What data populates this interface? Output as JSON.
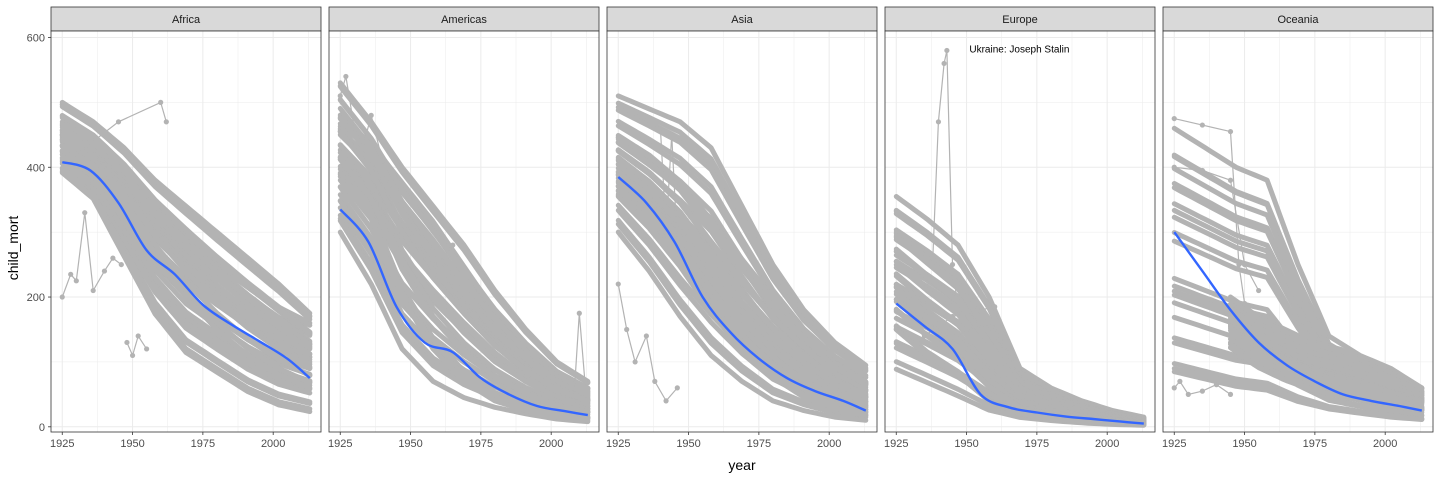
{
  "chart_data": {
    "type": "line",
    "xlabel": "year",
    "ylabel": "child_mort",
    "xlim": [
      1921,
      2017
    ],
    "ylim": [
      -8,
      610
    ],
    "x_ticks": [
      1925,
      1950,
      1975,
      2000
    ],
    "y_ticks": [
      0,
      200,
      400,
      600
    ],
    "grid": true,
    "colors": {
      "points": "#b3b3b3",
      "smooth": "#3366ff",
      "strip": "#d9d9d9",
      "grid": "#ebebeb"
    },
    "panels": [
      {
        "name": "Africa",
        "smooth": {
          "x": [
            1925,
            1935,
            1945,
            1955,
            1965,
            1975,
            1985,
            1995,
            2005,
            2013
          ],
          "y": [
            408,
            395,
            345,
            272,
            235,
            188,
            158,
            132,
            105,
            75
          ]
        },
        "bands": [
          {
            "x0": 1925,
            "x1": 2013,
            "top": [
              460,
              420,
              380,
              340,
              300,
              260,
              225,
              190,
              165
            ],
            "bottom": [
              390,
              350,
              260,
              170,
              110,
              80,
              50,
              30,
              20
            ]
          },
          {
            "x0": 1925,
            "x1": 2013,
            "top": [
              500,
              470,
              430,
              380,
              340,
              300,
              260,
              220,
              175
            ],
            "bottom": [
              420,
              390,
              330,
              260,
              200,
              150,
              110,
              80,
              60
            ]
          }
        ],
        "extra_lines": [
          {
            "x": [
              1925,
              1928,
              1930,
              1933,
              1936,
              1940,
              1943,
              1946
            ],
            "y": [
              200,
              235,
              225,
              330,
              210,
              240,
              260,
              250
            ]
          },
          {
            "x": [
              1930,
              1945,
              1960,
              1962
            ],
            "y": [
              420,
              470,
              500,
              470
            ]
          },
          {
            "x": [
              1948,
              1950,
              1952,
              1955
            ],
            "y": [
              130,
              110,
              140,
              120
            ]
          }
        ],
        "annotations": []
      },
      {
        "name": "Americas",
        "smooth": {
          "x": [
            1925,
            1935,
            1945,
            1955,
            1965,
            1975,
            1985,
            1995,
            2005,
            2013
          ],
          "y": [
            335,
            285,
            185,
            130,
            115,
            75,
            50,
            32,
            24,
            18
          ]
        },
        "bands": [
          {
            "x0": 1925,
            "x1": 2013,
            "top": [
              480,
              440,
              380,
              320,
              250,
              180,
              120,
              80,
              60
            ],
            "bottom": [
              300,
              220,
              120,
              70,
              45,
              30,
              20,
              12,
              8
            ]
          },
          {
            "x0": 1925,
            "x1": 2013,
            "top": [
              530,
              470,
              400,
              340,
              280,
              210,
              150,
              100,
              70
            ],
            "bottom": [
              380,
              320,
              200,
              120,
              70,
              40,
              25,
              15,
              10
            ]
          }
        ],
        "extra_lines": [
          {
            "x": [
              1925,
              1927,
              1930,
              1933,
              1936,
              1940
            ],
            "y": [
              510,
              540,
              460,
              430,
              480,
              410
            ]
          },
          {
            "x": [
              1930,
              1945,
              1960,
              1965
            ],
            "y": [
              400,
              300,
              250,
              280
            ]
          },
          {
            "x": [
              2008,
              2010,
              2012
            ],
            "y": [
              40,
              175,
              70
            ]
          }
        ],
        "annotations": []
      },
      {
        "name": "Asia",
        "smooth": {
          "x": [
            1925,
            1935,
            1945,
            1955,
            1965,
            1975,
            1985,
            1995,
            2005,
            2013
          ],
          "y": [
            385,
            345,
            285,
            200,
            145,
            105,
            75,
            55,
            40,
            25
          ]
        },
        "bands": [
          {
            "x0": 1925,
            "x1": 2013,
            "top": [
              510,
              490,
              470,
              430,
              340,
              250,
              180,
              130,
              95
            ],
            "bottom": [
              300,
              240,
              170,
              110,
              70,
              40,
              25,
              15,
              10
            ]
          },
          {
            "x0": 1925,
            "x1": 2013,
            "top": [
              450,
              420,
              380,
              320,
              260,
              200,
              150,
              100,
              70
            ],
            "bottom": [
              350,
              300,
              240,
              170,
              110,
              70,
              40,
              25,
              15
            ]
          }
        ],
        "extra_lines": [
          {
            "x": [
              1925,
              1928,
              1931,
              1935,
              1938,
              1942,
              1946
            ],
            "y": [
              220,
              150,
              100,
              140,
              70,
              40,
              60
            ]
          },
          {
            "x": [
              1940,
              1942,
              1944,
              1946
            ],
            "y": [
              460,
              300,
              450,
              280
            ]
          }
        ],
        "annotations": []
      },
      {
        "name": "Europe",
        "smooth": {
          "x": [
            1925,
            1935,
            1945,
            1955,
            1965,
            1975,
            1985,
            1995,
            2005,
            2013
          ],
          "y": [
            190,
            155,
            120,
            50,
            30,
            22,
            16,
            12,
            8,
            5
          ]
        },
        "bands": [
          {
            "x0": 1925,
            "x1": 2013,
            "top": [
              355,
              320,
              280,
              200,
              90,
              60,
              40,
              25,
              15
            ],
            "bottom": [
              80,
              60,
              40,
              20,
              12,
              8,
              5,
              3,
              2
            ]
          },
          {
            "x0": 1925,
            "x1": 2013,
            "top": [
              300,
              260,
              220,
              150,
              70,
              45,
              30,
              20,
              12
            ],
            "bottom": [
              150,
              110,
              80,
              40,
              20,
              12,
              8,
              5,
              3
            ]
          }
        ],
        "extra_lines": [
          {
            "x": [
              1938,
              1940,
              1942,
              1943,
              1945,
              1947,
              1950
            ],
            "y": [
              260,
              470,
              560,
              580,
              250,
              180,
              100
            ]
          },
          {
            "x": [
              1935,
              1945,
              1960
            ],
            "y": [
              140,
              170,
              185
            ]
          },
          {
            "x": [
              1950,
              1960
            ],
            "y": [
              150,
              160
            ]
          }
        ],
        "annotations": [
          {
            "x": 1951,
            "y": 577,
            "text": "Ukraine: Joseph Stalin"
          }
        ]
      },
      {
        "name": "Oceania",
        "smooth": {
          "x": [
            1925,
            1935,
            1945,
            1955,
            1965,
            1975,
            1985,
            1995,
            2005,
            2013
          ],
          "y": [
            300,
            240,
            180,
            130,
            95,
            70,
            50,
            40,
            32,
            25
          ]
        },
        "bands": [
          {
            "x0": 1925,
            "x1": 2013,
            "top": [
              460,
              430,
              400,
              380,
              250,
              140,
              110,
              90,
              60
            ],
            "bottom": [
              60,
              50,
              40,
              35,
              25,
              20,
              15,
              10,
              8
            ]
          },
          {
            "x0": 1945,
            "x1": 2013,
            "top": [
              200,
              170,
              150,
              130,
              120,
              100,
              80,
              60
            ],
            "bottom": [
              120,
              90,
              70,
              55,
              45,
              38,
              30,
              25
            ]
          }
        ],
        "extra_lines": [
          {
            "x": [
              1925,
              1935,
              1945,
              1948,
              1950
            ],
            "y": [
              475,
              465,
              455,
              250,
              190
            ]
          },
          {
            "x": [
              1925,
              1935,
              1945,
              1950,
              1955
            ],
            "y": [
              400,
              395,
              380,
              250,
              210
            ]
          },
          {
            "x": [
              1925,
              1927,
              1930,
              1935,
              1940,
              1945
            ],
            "y": [
              60,
              70,
              50,
              55,
              65,
              50
            ]
          }
        ],
        "annotations": []
      }
    ]
  }
}
